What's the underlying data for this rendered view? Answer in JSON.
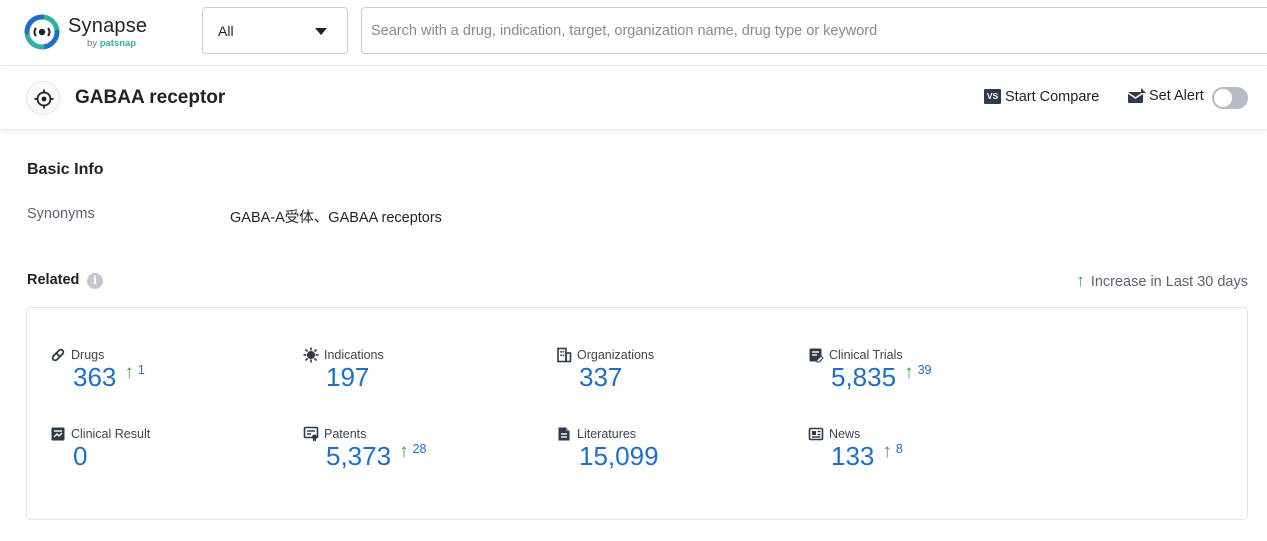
{
  "header": {
    "logo": {
      "title": "Synapse",
      "sub_prefix": "by",
      "sub_brand": "patsnap"
    },
    "scope_select": {
      "value": "All"
    },
    "search": {
      "placeholder": "Search with a drug, indication, target, organization name, drug type or keyword",
      "value": ""
    }
  },
  "title_bar": {
    "title": "GABAA receptor",
    "compare_badge": "VS",
    "compare_label": "Start Compare",
    "alert_label": "Set Alert",
    "alert_enabled": false
  },
  "basic_info": {
    "heading": "Basic Info",
    "synonyms_label": "Synonyms",
    "synonyms_value": "GABA-A受体、GABAA receptors"
  },
  "related": {
    "heading": "Related",
    "info_icon": "i",
    "increase_arrow": "↑",
    "increase_label": "Increase in Last 30 days",
    "stats": [
      {
        "icon": "pill-icon",
        "label": "Drugs",
        "value": "363",
        "increase": "1"
      },
      {
        "icon": "virus-icon",
        "label": "Indications",
        "value": "197",
        "increase": ""
      },
      {
        "icon": "building-icon",
        "label": "Organizations",
        "value": "337",
        "increase": ""
      },
      {
        "icon": "clipboard-icon",
        "label": "Clinical Trials",
        "value": "5,835",
        "increase": "39"
      },
      {
        "icon": "result-icon",
        "label": "Clinical Result",
        "value": "0",
        "increase": ""
      },
      {
        "icon": "patent-icon",
        "label": "Patents",
        "value": "5,373",
        "increase": "28"
      },
      {
        "icon": "document-icon",
        "label": "Literatures",
        "value": "15,099",
        "increase": ""
      },
      {
        "icon": "news-icon",
        "label": "News",
        "value": "133",
        "increase": "8"
      }
    ]
  },
  "colors": {
    "accent_number": "#1e6fc8",
    "increase_green": "#3aa34d",
    "logo_teal": "#2fb3a0"
  }
}
